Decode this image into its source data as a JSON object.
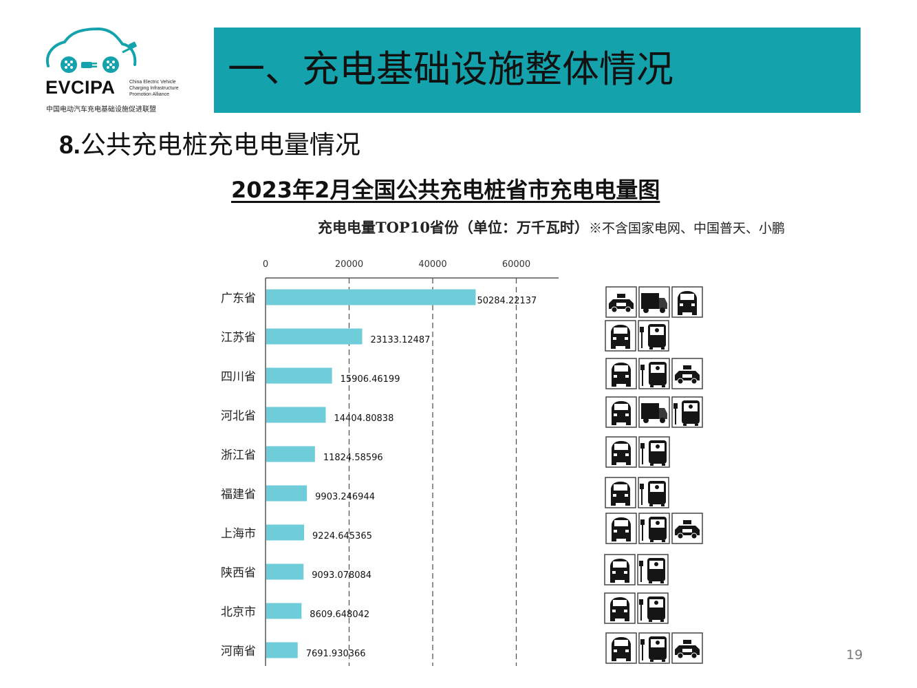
{
  "logo": {
    "name": "EVCIPA",
    "en_line1": "China Electric Vehicle",
    "en_line2": "Charging Infrastructure",
    "en_line3": "Promotion Alliance",
    "cn": "中国电动汽车充电基础设施促进联盟"
  },
  "banner": {
    "title": "一、充电基础设施整体情况",
    "color": "#14a3ac"
  },
  "section": {
    "number": "8.",
    "title": "公共充电桩充电电量情况"
  },
  "page_number": "19",
  "chart_data": {
    "type": "bar",
    "orientation": "horizontal",
    "title": "2023年2月全国公共充电桩省市充电电量图",
    "subtitle": "充电电量TOP10省份（单位：万千瓦时）",
    "note": "※不含国家电网、中国普天、小鹏",
    "categories": [
      "广东省",
      "江苏省",
      "四川省",
      "河北省",
      "浙江省",
      "福建省",
      "上海市",
      "陕西省",
      "北京市",
      "河南省"
    ],
    "values": [
      50284.22137,
      23133.12487,
      15906.46199,
      14404.80838,
      11824.58596,
      9903.246944,
      9224.645365,
      9093.078084,
      8609.648042,
      7691.930366
    ],
    "value_labels": [
      "50284.22137",
      "23133.12487",
      "15906.46199",
      "14404.80838",
      "11824.58596",
      "9903.246944",
      "9224.645365",
      "9093.078084",
      "8609.648042",
      "7691.930366"
    ],
    "xticks": [
      "0",
      "20000",
      "40000",
      "60000"
    ],
    "xlim": [
      0,
      70000
    ],
    "bar_color": "#6ecdd8",
    "grid": "vertical dashed at 20000, 40000, 60000",
    "vehicle_icons": [
      [
        "taxi",
        "truck",
        "car"
      ],
      [
        "car",
        "bus"
      ],
      [
        "car",
        "bus",
        "taxi"
      ],
      [
        "car",
        "truck",
        "bus"
      ],
      [
        "car",
        "bus"
      ],
      [
        "car",
        "bus"
      ],
      [
        "car",
        "bus",
        "taxi"
      ],
      [
        "car",
        "bus"
      ],
      [
        "car",
        "bus"
      ],
      [
        "car",
        "bus",
        "taxi"
      ]
    ]
  }
}
